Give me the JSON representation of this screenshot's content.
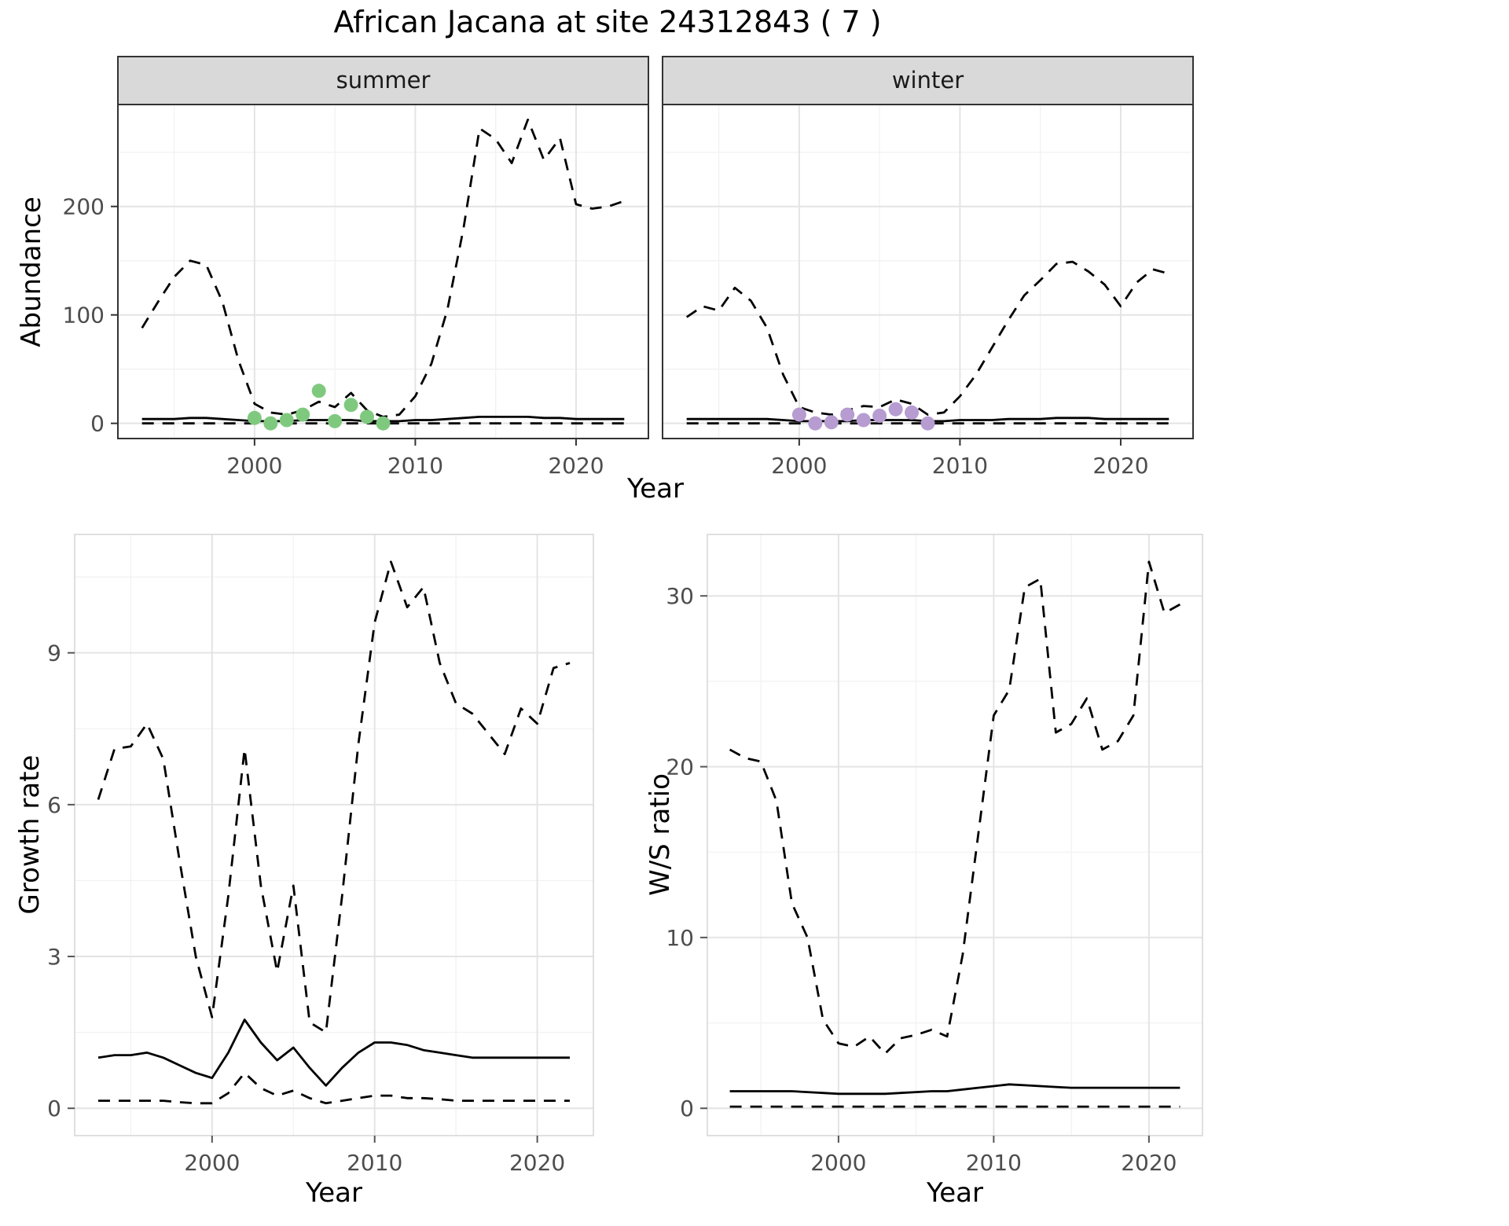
{
  "title": "African Jacana at site 24312843 ( 7 )",
  "top_row": {
    "ylabel": "Abundance",
    "xlabel": "Year"
  },
  "style": {
    "strip_bg": "#d9d9d9",
    "strip_border": "#333333",
    "panel_border_top": "#333333",
    "panel_border_bottom": "#d6d6d6",
    "grid_major": "#e4e4e4",
    "grid_minor": "#f2f2f2",
    "tick_label_color": "#4d4d4d",
    "line_color": "#000000",
    "summer_point_color": "#7fc97f",
    "winter_point_color": "#b69cd0"
  },
  "chart_data": [
    {
      "id": "abundance-summer",
      "type": "line",
      "facet": "summer",
      "ylabel": "Abundance",
      "xlabel": "Year",
      "xlim": [
        1991.5,
        2024.5
      ],
      "ylim": [
        -14,
        294
      ],
      "xticks": [
        2000,
        2010,
        2020
      ],
      "xticks_minor": [
        1995,
        2005,
        2015
      ],
      "yticks": [
        0,
        100,
        200
      ],
      "yticks_minor": [
        50,
        150,
        250
      ],
      "grid": true,
      "legend": "none",
      "x": [
        1993,
        1994,
        1995,
        1996,
        1997,
        1998,
        1999,
        2000,
        2001,
        2002,
        2003,
        2004,
        2005,
        2006,
        2007,
        2008,
        2009,
        2010,
        2011,
        2012,
        2013,
        2014,
        2015,
        2016,
        2017,
        2018,
        2019,
        2020,
        2021,
        2022,
        2023
      ],
      "series": [
        {
          "name": "upper-ci",
          "style": "dashed",
          "values": [
            88,
            112,
            135,
            150,
            146,
            112,
            58,
            18,
            10,
            8,
            12,
            20,
            15,
            28,
            12,
            6,
            8,
            25,
            55,
            105,
            180,
            272,
            262,
            240,
            280,
            243,
            263,
            202,
            198,
            200,
            205
          ]
        },
        {
          "name": "median",
          "style": "solid",
          "values": [
            4,
            4,
            4,
            5,
            5,
            4,
            3,
            2,
            2,
            2,
            3,
            3,
            3,
            3,
            2,
            2,
            2,
            3,
            3,
            4,
            5,
            6,
            6,
            6,
            6,
            5,
            5,
            4,
            4,
            4,
            4
          ]
        },
        {
          "name": "lower-ci",
          "style": "dashed",
          "values": [
            0,
            0,
            0,
            0,
            0,
            0,
            0,
            0,
            0,
            0,
            0,
            0,
            0,
            0,
            0,
            0,
            0,
            0,
            0,
            0,
            0,
            0,
            0,
            0,
            0,
            0,
            0,
            0,
            0,
            0,
            0
          ]
        }
      ],
      "points": {
        "name": "observed-count-point",
        "color": "#7fc97f",
        "x": [
          2000,
          2001,
          2002,
          2003,
          2004,
          2005,
          2006,
          2007,
          2008
        ],
        "y": [
          5,
          0,
          3,
          8,
          30,
          2,
          17,
          6,
          0
        ]
      }
    },
    {
      "id": "abundance-winter",
      "type": "line",
      "facet": "winter",
      "ylabel": "Abundance",
      "xlabel": "Year",
      "xlim": [
        1991.5,
        2024.5
      ],
      "ylim": [
        -14,
        294
      ],
      "xticks": [
        2000,
        2010,
        2020
      ],
      "xticks_minor": [
        1995,
        2005,
        2015
      ],
      "yticks": [
        0,
        100,
        200
      ],
      "yticks_minor": [
        50,
        150,
        250
      ],
      "grid": true,
      "legend": "none",
      "x": [
        1993,
        1994,
        1995,
        1996,
        1997,
        1998,
        1999,
        2000,
        2001,
        2002,
        2003,
        2004,
        2005,
        2006,
        2007,
        2008,
        2009,
        2010,
        2011,
        2012,
        2013,
        2014,
        2015,
        2016,
        2017,
        2018,
        2019,
        2020,
        2021,
        2022,
        2023
      ],
      "series": [
        {
          "name": "upper-ci",
          "style": "dashed",
          "values": [
            98,
            108,
            104,
            125,
            113,
            88,
            45,
            15,
            10,
            8,
            12,
            16,
            15,
            22,
            18,
            8,
            10,
            25,
            45,
            70,
            95,
            118,
            132,
            147,
            149,
            140,
            128,
            108,
            130,
            142,
            138
          ]
        },
        {
          "name": "median",
          "style": "solid",
          "values": [
            4,
            4,
            4,
            4,
            4,
            4,
            3,
            2,
            2,
            2,
            2,
            3,
            3,
            3,
            3,
            2,
            2,
            3,
            3,
            3,
            4,
            4,
            4,
            5,
            5,
            5,
            4,
            4,
            4,
            4,
            4
          ]
        },
        {
          "name": "lower-ci",
          "style": "dashed",
          "values": [
            0,
            0,
            0,
            0,
            0,
            0,
            0,
            0,
            0,
            0,
            0,
            0,
            0,
            0,
            0,
            0,
            0,
            0,
            0,
            0,
            0,
            0,
            0,
            0,
            0,
            0,
            0,
            0,
            0,
            0,
            0
          ]
        }
      ],
      "points": {
        "name": "observed-count-point",
        "color": "#b69cd0",
        "x": [
          2000,
          2001,
          2002,
          2003,
          2004,
          2005,
          2006,
          2007,
          2008
        ],
        "y": [
          8,
          0,
          1,
          8,
          3,
          7,
          13,
          10,
          0
        ]
      }
    },
    {
      "id": "growth-rate",
      "type": "line",
      "ylabel": "Growth rate",
      "xlabel": "Year",
      "xlim": [
        1991.55,
        2023.45
      ],
      "ylim": [
        -0.54,
        11.34
      ],
      "xticks": [
        2000,
        2010,
        2020
      ],
      "xticks_minor": [
        1995,
        2005,
        2015
      ],
      "yticks": [
        0,
        3,
        6,
        9
      ],
      "yticks_minor": [
        1.5,
        4.5,
        7.5,
        10.5
      ],
      "grid": true,
      "legend": "none",
      "x": [
        1993,
        1994,
        1995,
        1996,
        1997,
        1998,
        1999,
        2000,
        2001,
        2002,
        2003,
        2004,
        2005,
        2006,
        2007,
        2008,
        2009,
        2010,
        2011,
        2012,
        2013,
        2014,
        2015,
        2016,
        2017,
        2018,
        2019,
        2020,
        2021,
        2022
      ],
      "series": [
        {
          "name": "upper-ci",
          "style": "dashed",
          "values": [
            6.1,
            7.1,
            7.15,
            7.6,
            6.9,
            4.9,
            3.0,
            1.8,
            4.2,
            7.1,
            4.4,
            2.7,
            4.4,
            1.7,
            1.5,
            4.2,
            7.2,
            9.6,
            10.8,
            9.9,
            10.3,
            8.8,
            8.0,
            7.8,
            7.4,
            7.0,
            7.9,
            7.6,
            8.7,
            8.8
          ]
        },
        {
          "name": "median",
          "style": "solid",
          "values": [
            1.0,
            1.05,
            1.05,
            1.1,
            1.0,
            0.85,
            0.7,
            0.6,
            1.1,
            1.75,
            1.3,
            0.95,
            1.2,
            0.8,
            0.45,
            0.8,
            1.1,
            1.3,
            1.3,
            1.25,
            1.15,
            1.1,
            1.05,
            1.0,
            1.0,
            1.0,
            1.0,
            1.0,
            1.0,
            1.0
          ]
        },
        {
          "name": "lower-ci",
          "style": "dashed",
          "values": [
            0.15,
            0.15,
            0.15,
            0.15,
            0.15,
            0.12,
            0.1,
            0.1,
            0.3,
            0.7,
            0.4,
            0.25,
            0.35,
            0.2,
            0.1,
            0.15,
            0.2,
            0.25,
            0.25,
            0.2,
            0.2,
            0.18,
            0.15,
            0.15,
            0.15,
            0.15,
            0.15,
            0.15,
            0.15,
            0.15
          ]
        }
      ]
    },
    {
      "id": "ws-ratio",
      "type": "line",
      "ylabel": "W/S ratio",
      "xlabel": "Year",
      "xlim": [
        1991.55,
        2023.45
      ],
      "ylim": [
        -1.6,
        33.6
      ],
      "xticks": [
        2000,
        2010,
        2020
      ],
      "xticks_minor": [
        1995,
        2005,
        2015
      ],
      "yticks": [
        0,
        10,
        20,
        30
      ],
      "yticks_minor": [
        5,
        15,
        25
      ],
      "grid": true,
      "legend": "none",
      "x": [
        1993,
        1994,
        1995,
        1996,
        1997,
        1998,
        1999,
        2000,
        2001,
        2002,
        2003,
        2004,
        2005,
        2006,
        2007,
        2008,
        2009,
        2010,
        2011,
        2012,
        2013,
        2014,
        2015,
        2016,
        2017,
        2018,
        2019,
        2020,
        2021,
        2022
      ],
      "series": [
        {
          "name": "upper-ci",
          "style": "dashed",
          "values": [
            21.0,
            20.5,
            20.3,
            18.0,
            12.0,
            10.0,
            5.2,
            3.8,
            3.6,
            4.2,
            3.2,
            4.1,
            4.3,
            4.6,
            4.2,
            9.0,
            16.0,
            23.0,
            24.5,
            30.5,
            31.0,
            22.0,
            22.5,
            24.0,
            21.0,
            21.5,
            23.0,
            32.0,
            29.0,
            29.5
          ]
        },
        {
          "name": "median",
          "style": "solid",
          "values": [
            1.0,
            1.0,
            1.0,
            1.0,
            1.0,
            0.95,
            0.9,
            0.85,
            0.85,
            0.85,
            0.85,
            0.9,
            0.95,
            1.0,
            1.0,
            1.1,
            1.2,
            1.3,
            1.4,
            1.35,
            1.3,
            1.25,
            1.2,
            1.2,
            1.2,
            1.2,
            1.2,
            1.2,
            1.2,
            1.2
          ]
        },
        {
          "name": "lower-ci",
          "style": "dashed",
          "values": [
            0.1,
            0.1,
            0.1,
            0.1,
            0.1,
            0.1,
            0.1,
            0.1,
            0.1,
            0.1,
            0.1,
            0.1,
            0.1,
            0.1,
            0.1,
            0.1,
            0.1,
            0.1,
            0.1,
            0.1,
            0.1,
            0.1,
            0.1,
            0.1,
            0.1,
            0.1,
            0.1,
            0.1,
            0.1,
            0.1
          ]
        }
      ]
    }
  ]
}
